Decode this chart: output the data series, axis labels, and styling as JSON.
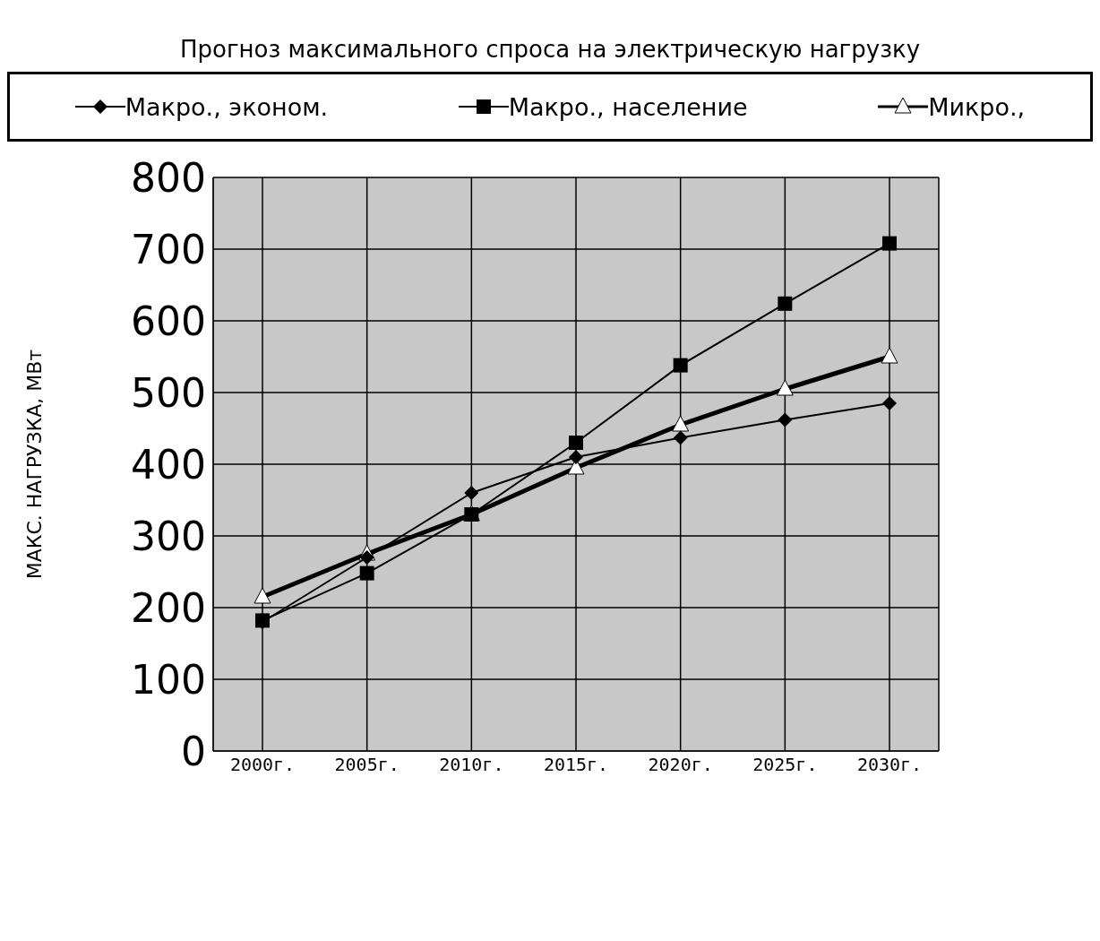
{
  "chart_data": {
    "type": "line",
    "title": "Прогноз максимального спроса на электрическую нагрузку",
    "ylabel": "МАКС. НАГРУЗКА, МВт",
    "categories": [
      "2000г.",
      "2005г.",
      "2010г.",
      "2015г.",
      "2020г.",
      "2025г.",
      "2030г."
    ],
    "series": [
      {
        "name": "Макро., эконом.",
        "color": "#000000",
        "marker": "diamond",
        "values": [
          180,
          270,
          360,
          410,
          437,
          462,
          485
        ]
      },
      {
        "name": "Макро., население",
        "color": "#000000",
        "marker": "square",
        "values": [
          182,
          248,
          330,
          430,
          538,
          624,
          708
        ]
      },
      {
        "name": "Микро.,",
        "color": "#000000",
        "marker": "triangle",
        "values": [
          215,
          275,
          330,
          395,
          455,
          505,
          550
        ]
      }
    ],
    "ylim": [
      0,
      800
    ],
    "yticks": [
      0,
      100,
      200,
      300,
      400,
      500,
      600,
      700,
      800
    ],
    "grid": true,
    "legend": "top"
  }
}
